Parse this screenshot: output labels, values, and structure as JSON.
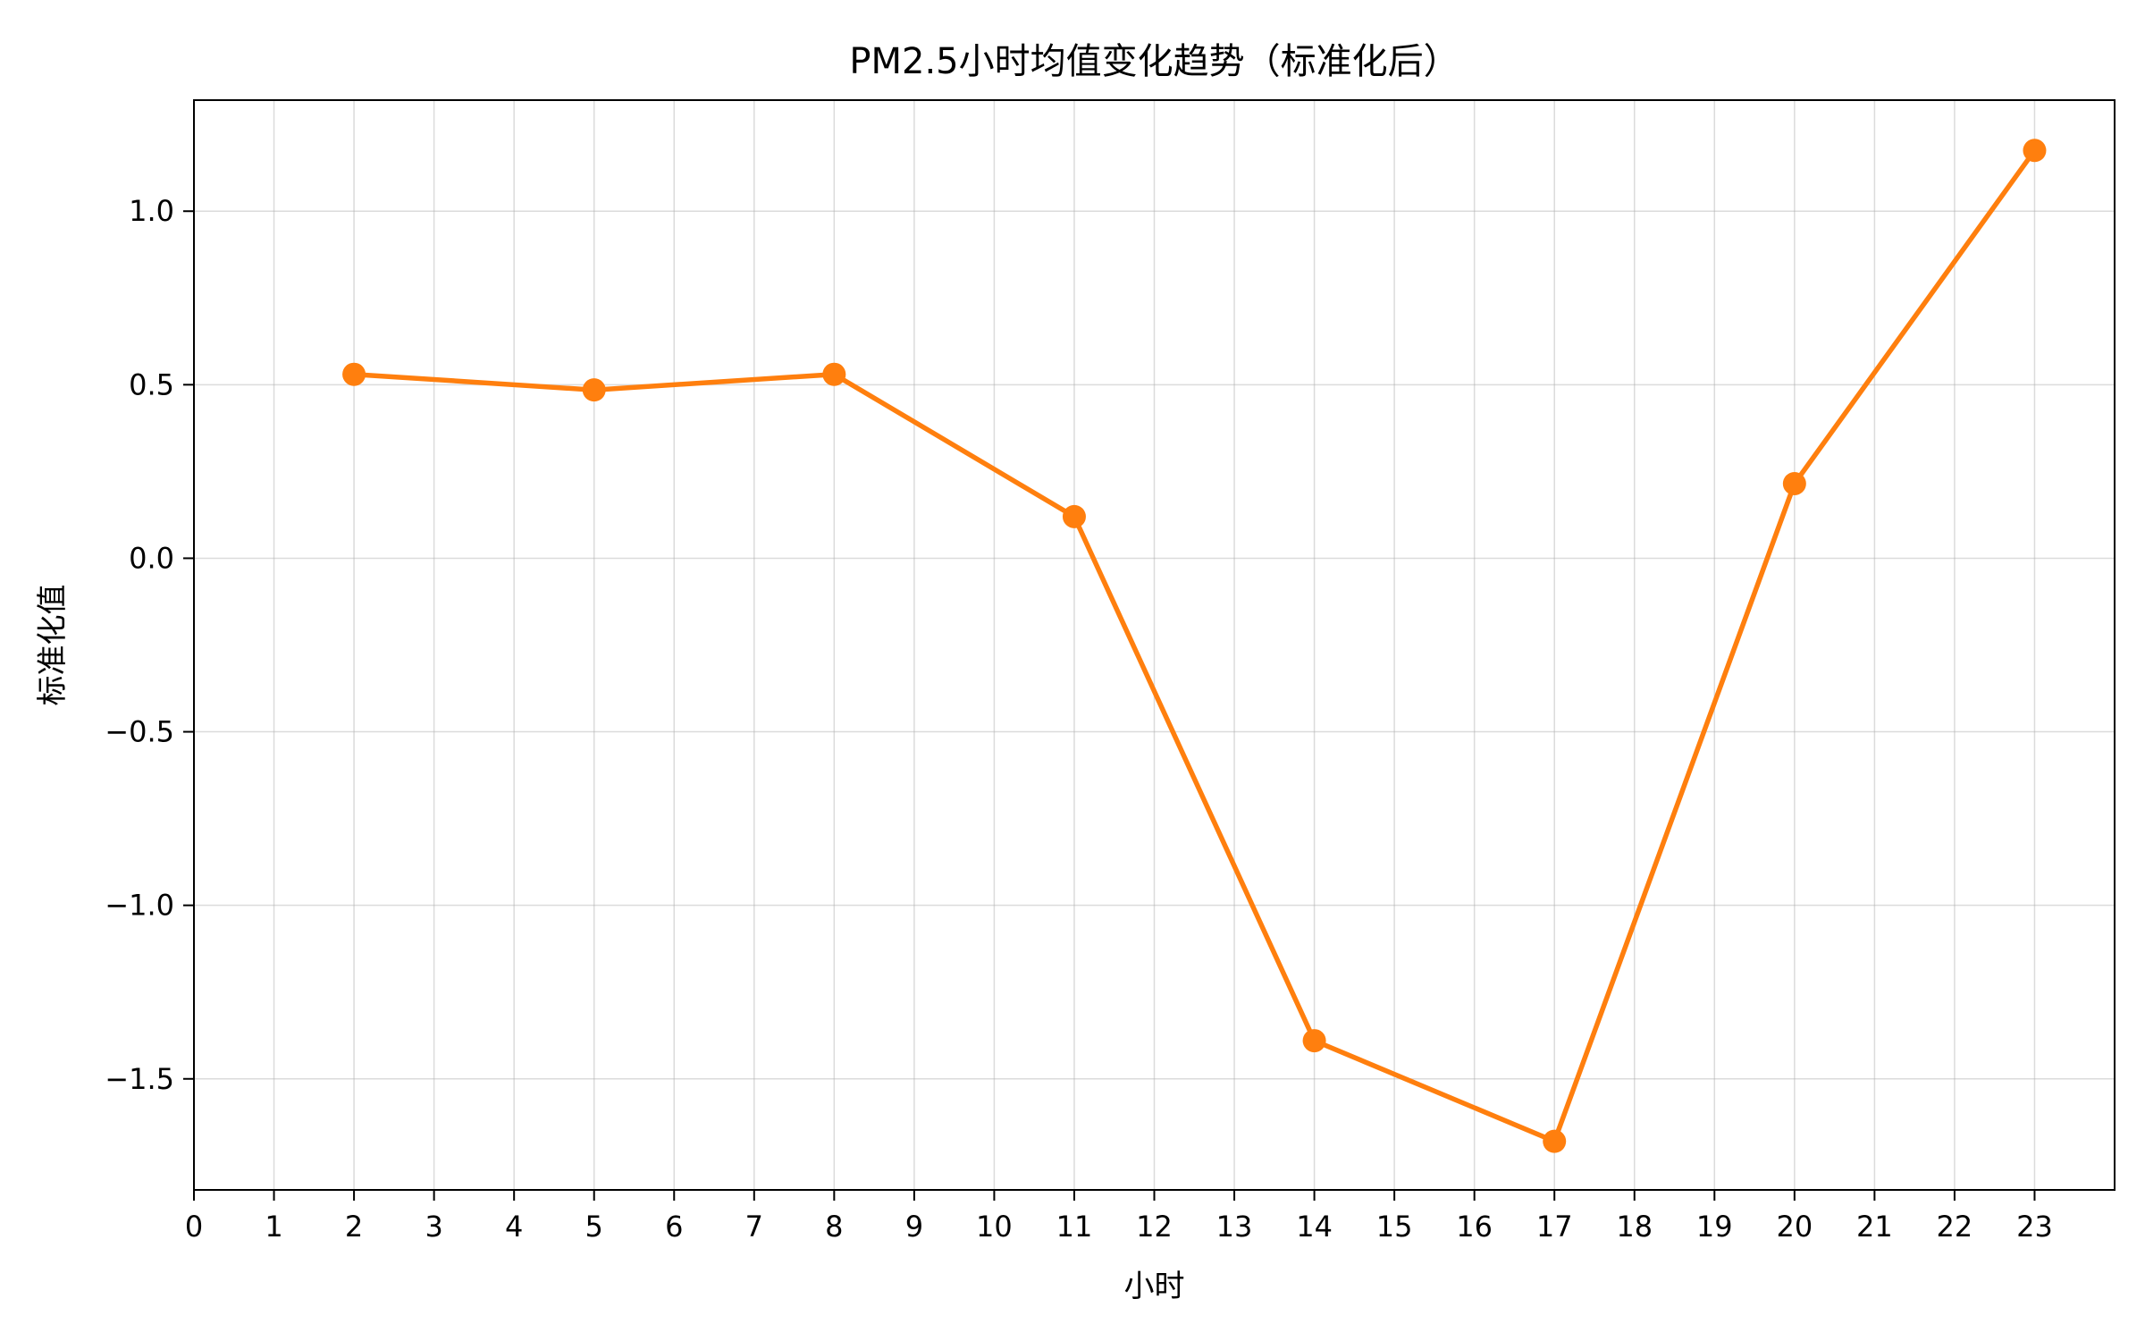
{
  "chart_data": {
    "type": "line",
    "title": "PM2.5小时均值变化趋势（标准化后）",
    "xlabel": "小时",
    "ylabel": "标准化值",
    "x_ticks": [
      0,
      1,
      2,
      3,
      4,
      5,
      6,
      7,
      8,
      9,
      10,
      11,
      12,
      13,
      14,
      15,
      16,
      17,
      18,
      19,
      20,
      21,
      22,
      23
    ],
    "y_ticks": [
      -1.5,
      -1.0,
      -0.5,
      0.0,
      0.5,
      1.0
    ],
    "y_tick_labels": [
      "−1.5",
      "−1.0",
      "−0.5",
      "0.0",
      "0.5",
      "1.0"
    ],
    "xlim": [
      0,
      24
    ],
    "ylim": [
      -1.82,
      1.32
    ],
    "grid": true,
    "series": [
      {
        "color": "#ff7f0e",
        "marker": "circle",
        "x": [
          2,
          5,
          8,
          11,
          14,
          17,
          20,
          23
        ],
        "y": [
          0.53,
          0.485,
          0.53,
          0.12,
          -1.39,
          -1.68,
          0.215,
          1.175
        ]
      }
    ]
  }
}
